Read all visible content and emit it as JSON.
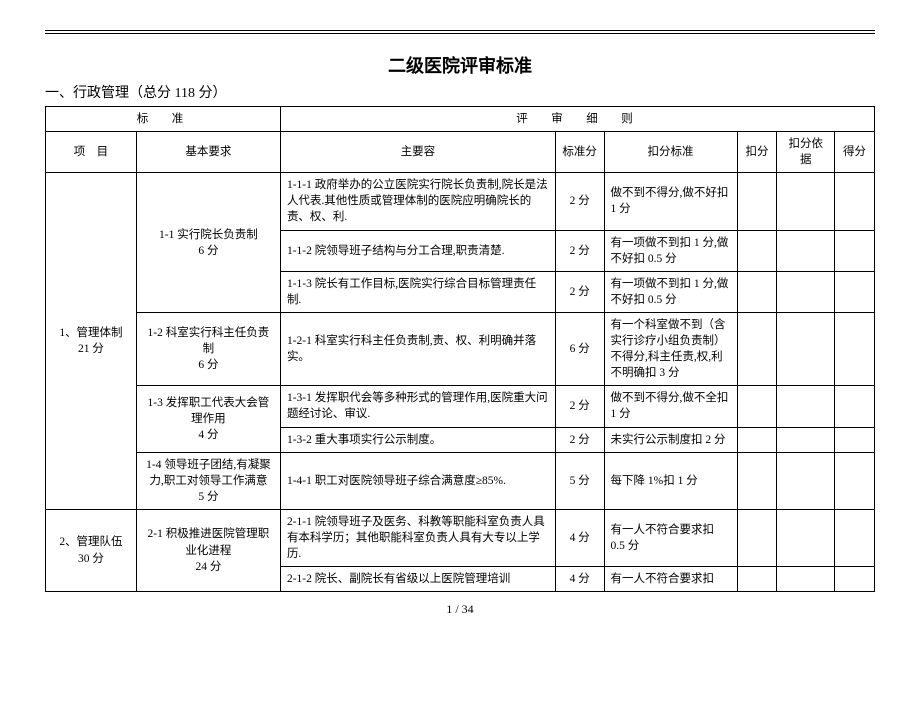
{
  "title": "二级医院评审标准",
  "section": "一、行政管理（总分 118 分）",
  "pageNum": "1 / 34",
  "headers": {
    "group1": "标　准",
    "group2": "评　审　细　则",
    "c1": "项　目",
    "c2": "基本要求",
    "c3": "主要容",
    "c4": "标准分",
    "c5": "扣分标准",
    "c6": "扣分",
    "c7": "扣分依据",
    "c8": "得分"
  },
  "rows": {
    "project1": "1、管理体制\n21 分",
    "basic11": "1-1 实行院长负责制\n6 分",
    "content111": "1-1-1 政府举办的公立医院实行院长负责制,院长是法人代表.其他性质或管理体制的医院应明确院长的责、权、利.",
    "std111": "2 分",
    "ded111": "做不到不得分,做不好扣 1 分",
    "content112": "1-1-2 院领导班子结构与分工合理,职责清楚.",
    "std112": "2 分",
    "ded112": "有一项做不到扣 1 分,做不好扣 0.5 分",
    "content113": "1-1-3 院长有工作目标,医院实行综合目标管理责任制.",
    "std113": "2 分",
    "ded113": "有一项做不到扣 1 分,做不好扣 0.5 分",
    "basic12": "1-2 科室实行科主任负责制\n6 分",
    "content121": "1-2-1 科室实行科主任负责制,责、权、利明确并落实。",
    "std121": "6 分",
    "ded121": "有一个科室做不到（含实行诊疗小组负责制）不得分,科主任责,权,利不明确扣 3 分",
    "basic13": "1-3 发挥职工代表大会管理作用\n4 分",
    "content131": "1-3-1 发挥职代会等多种形式的管理作用,医院重大问题经讨论、审议.",
    "std131": "2 分",
    "ded131": "做不到不得分,做不全扣 1 分",
    "content132": "1-3-2 重大事项实行公示制度。",
    "std132": "2 分",
    "ded132": "未实行公示制度扣 2 分",
    "basic14": "1-4 领导班子团结,有凝聚力,职工对领导工作满意\n5 分",
    "content141": "1-4-1 职工对医院领导班子综合满意度≥85%.",
    "std141": "5 分",
    "ded141": "每下降 1%扣 1 分",
    "project2": "2、管理队伍\n30 分",
    "basic21": "2-1 积极推进医院管理职业化进程\n24 分",
    "content211": "2-1-1 院领导班子及医务、科教等职能科室负责人具有本科学历；其他职能科室负责人具有大专以上学历.",
    "std211": "4 分",
    "ded211": "有一人不符合要求扣 0.5 分",
    "content212": "2-1-2 院长、副院长有省级以上医院管理培训",
    "std212": "4 分",
    "ded212": "有一人不符合要求扣"
  }
}
